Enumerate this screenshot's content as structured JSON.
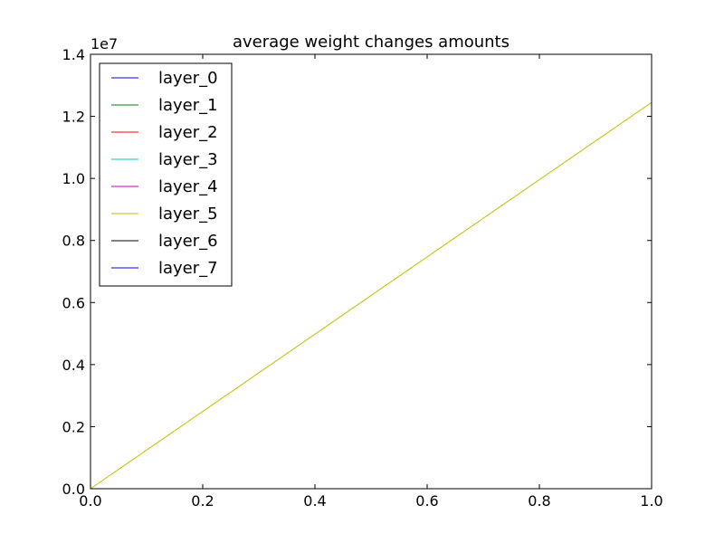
{
  "chart_data": {
    "type": "line",
    "title": "average weight changes amounts",
    "xlabel": "",
    "ylabel": "",
    "xlim": [
      0,
      1
    ],
    "ylim": [
      0,
      1.4
    ],
    "y_offset_label": "1e7",
    "x_ticks": [
      0.0,
      0.2,
      0.4,
      0.6,
      0.8,
      1.0
    ],
    "x_tick_labels": [
      "0.0",
      "0.2",
      "0.4",
      "0.6",
      "0.8",
      "1.0"
    ],
    "y_ticks": [
      0.0,
      0.2,
      0.4,
      0.6,
      0.8,
      1.0,
      1.2,
      1.4
    ],
    "y_tick_labels": [
      "0.0",
      "0.2",
      "0.4",
      "0.6",
      "0.8",
      "1.0",
      "1.2",
      "1.4"
    ],
    "grid": false,
    "legend_position": "top-left",
    "series": [
      {
        "name": "layer_0",
        "color": "#0000ff",
        "x": [
          0,
          1
        ],
        "y": [
          0,
          0
        ]
      },
      {
        "name": "layer_1",
        "color": "#008000",
        "x": [
          0,
          1
        ],
        "y": [
          0,
          0
        ]
      },
      {
        "name": "layer_2",
        "color": "#ff0000",
        "x": [
          0,
          1
        ],
        "y": [
          0,
          0
        ]
      },
      {
        "name": "layer_3",
        "color": "#00bfbf",
        "x": [
          0,
          1
        ],
        "y": [
          0,
          0
        ]
      },
      {
        "name": "layer_4",
        "color": "#bf00bf",
        "x": [
          0,
          1
        ],
        "y": [
          0,
          0
        ]
      },
      {
        "name": "layer_5",
        "color": "#bfbf00",
        "x": [
          0,
          1
        ],
        "y": [
          0,
          1.245
        ]
      },
      {
        "name": "layer_6",
        "color": "#000000",
        "x": [
          0,
          1
        ],
        "y": [
          0,
          0
        ]
      },
      {
        "name": "layer_7",
        "color": "#0000ff",
        "x": [
          0,
          1
        ],
        "y": [
          0,
          0
        ]
      }
    ]
  }
}
